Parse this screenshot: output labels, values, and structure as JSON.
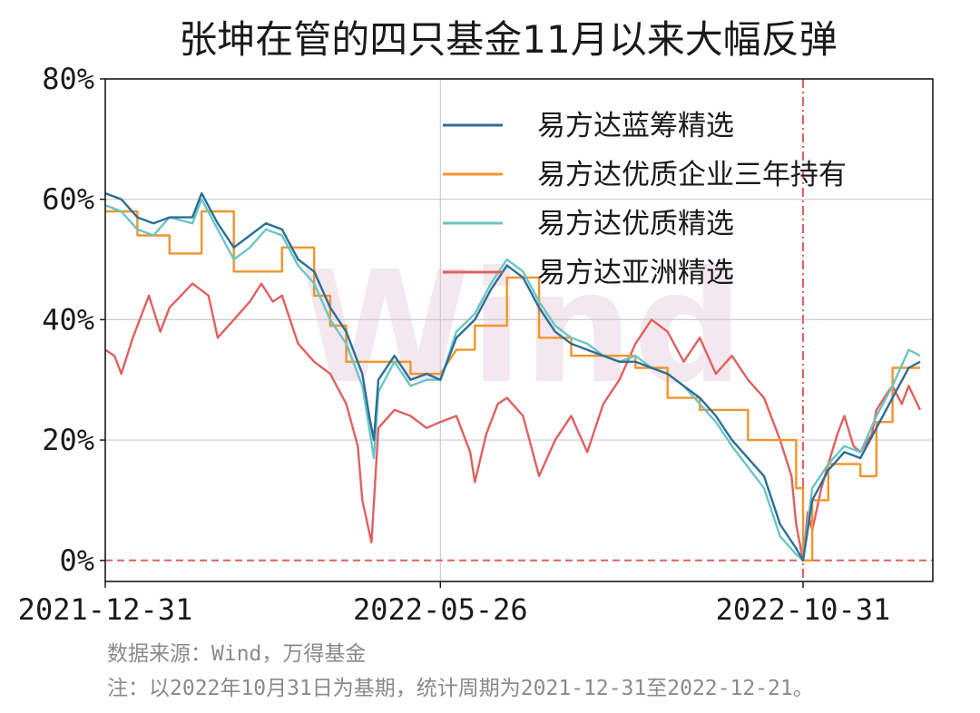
{
  "colors": {
    "series_1": "#2c6e98",
    "series_2": "#f0952a",
    "series_3": "#6cc5c4",
    "series_4": "#e06060",
    "reference": "#e06060",
    "grid": "#cccccc",
    "watermark": "#f3e8ef"
  },
  "watermark": "Wind",
  "notes": {
    "source": "数据来源：Wind，万得基金",
    "note": "注：以2022年10月31日为基期，统计周期为2021-12-31至2022-12-21。"
  },
  "chart_data": {
    "type": "line",
    "title": "张坤在管的四只基金11月以来大幅反弹",
    "xlabel": "",
    "ylabel": "",
    "x_ticks": [
      "2021-12-31",
      "2022-05-26",
      "2022-10-31"
    ],
    "x_range": [
      "2021-12-31",
      "2022-12-21"
    ],
    "y_ticks": [
      "0%",
      "20%",
      "40%",
      "60%",
      "80%"
    ],
    "ylim": [
      -3.5,
      80
    ],
    "grid": true,
    "legend_position": "top-right",
    "reference_lines": {
      "vertical_date": "2022-10-31",
      "horizontal_value": 0
    },
    "series": [
      {
        "name": "易方达蓝筹精选",
        "points": [
          [
            "2021-12-31",
            61
          ],
          [
            "2022-01-07",
            60
          ],
          [
            "2022-01-14",
            57
          ],
          [
            "2022-01-21",
            56
          ],
          [
            "2022-01-28",
            57
          ],
          [
            "2022-02-07",
            57
          ],
          [
            "2022-02-11",
            61
          ],
          [
            "2022-02-18",
            56
          ],
          [
            "2022-02-25",
            52
          ],
          [
            "2022-03-04",
            54
          ],
          [
            "2022-03-11",
            56
          ],
          [
            "2022-03-18",
            55
          ],
          [
            "2022-03-25",
            50
          ],
          [
            "2022-04-01",
            48
          ],
          [
            "2022-04-08",
            42
          ],
          [
            "2022-04-15",
            38
          ],
          [
            "2022-04-22",
            31
          ],
          [
            "2022-04-25",
            24
          ],
          [
            "2022-04-27",
            20
          ],
          [
            "2022-04-29",
            30
          ],
          [
            "2022-05-06",
            34
          ],
          [
            "2022-05-13",
            30
          ],
          [
            "2022-05-20",
            31
          ],
          [
            "2022-05-26",
            30
          ],
          [
            "2022-06-02",
            37
          ],
          [
            "2022-06-10",
            40
          ],
          [
            "2022-06-17",
            45
          ],
          [
            "2022-06-24",
            49
          ],
          [
            "2022-07-01",
            47
          ],
          [
            "2022-07-08",
            42
          ],
          [
            "2022-07-15",
            38
          ],
          [
            "2022-07-22",
            36
          ],
          [
            "2022-07-29",
            35
          ],
          [
            "2022-08-05",
            34
          ],
          [
            "2022-08-12",
            33
          ],
          [
            "2022-08-19",
            33
          ],
          [
            "2022-08-26",
            32
          ],
          [
            "2022-09-02",
            31
          ],
          [
            "2022-09-09",
            29
          ],
          [
            "2022-09-16",
            27
          ],
          [
            "2022-09-23",
            24
          ],
          [
            "2022-09-30",
            20
          ],
          [
            "2022-10-14",
            14
          ],
          [
            "2022-10-21",
            6
          ],
          [
            "2022-10-28",
            2
          ],
          [
            "2022-10-31",
            0
          ],
          [
            "2022-11-04",
            10
          ],
          [
            "2022-11-11",
            15
          ],
          [
            "2022-11-18",
            18
          ],
          [
            "2022-11-25",
            17
          ],
          [
            "2022-12-02",
            22
          ],
          [
            "2022-12-09",
            27
          ],
          [
            "2022-12-16",
            32
          ],
          [
            "2022-12-21",
            33
          ]
        ]
      },
      {
        "name": "易方达优质企业三年持有",
        "points": [
          [
            "2021-12-31",
            58
          ],
          [
            "2022-01-14",
            58
          ],
          [
            "2022-01-14",
            54
          ],
          [
            "2022-01-28",
            54
          ],
          [
            "2022-01-28",
            51
          ],
          [
            "2022-02-11",
            51
          ],
          [
            "2022-02-11",
            58
          ],
          [
            "2022-02-25",
            58
          ],
          [
            "2022-02-25",
            48
          ],
          [
            "2022-03-18",
            48
          ],
          [
            "2022-03-18",
            52
          ],
          [
            "2022-04-01",
            52
          ],
          [
            "2022-04-01",
            44
          ],
          [
            "2022-04-08",
            44
          ],
          [
            "2022-04-08",
            39
          ],
          [
            "2022-04-15",
            39
          ],
          [
            "2022-04-15",
            33
          ],
          [
            "2022-05-13",
            33
          ],
          [
            "2022-05-13",
            31
          ],
          [
            "2022-05-26",
            31
          ],
          [
            "2022-06-02",
            35
          ],
          [
            "2022-06-10",
            35
          ],
          [
            "2022-06-10",
            39
          ],
          [
            "2022-06-24",
            39
          ],
          [
            "2022-06-24",
            47
          ],
          [
            "2022-07-08",
            47
          ],
          [
            "2022-07-08",
            37
          ],
          [
            "2022-07-22",
            37
          ],
          [
            "2022-07-22",
            34
          ],
          [
            "2022-08-19",
            34
          ],
          [
            "2022-08-19",
            32
          ],
          [
            "2022-09-02",
            32
          ],
          [
            "2022-09-02",
            27
          ],
          [
            "2022-09-16",
            27
          ],
          [
            "2022-09-16",
            25
          ],
          [
            "2022-10-07",
            25
          ],
          [
            "2022-10-07",
            20
          ],
          [
            "2022-10-28",
            20
          ],
          [
            "2022-10-28",
            12
          ],
          [
            "2022-10-31",
            12
          ],
          [
            "2022-10-31",
            0
          ],
          [
            "2022-11-04",
            0
          ],
          [
            "2022-11-04",
            10
          ],
          [
            "2022-11-11",
            10
          ],
          [
            "2022-11-11",
            16
          ],
          [
            "2022-11-25",
            16
          ],
          [
            "2022-11-25",
            14
          ],
          [
            "2022-12-02",
            14
          ],
          [
            "2022-12-02",
            23
          ],
          [
            "2022-12-09",
            23
          ],
          [
            "2022-12-09",
            32
          ],
          [
            "2022-12-21",
            32
          ]
        ]
      },
      {
        "name": "易方达优质精选",
        "points": [
          [
            "2021-12-31",
            59
          ],
          [
            "2022-01-07",
            58
          ],
          [
            "2022-01-14",
            55
          ],
          [
            "2022-01-21",
            54
          ],
          [
            "2022-01-28",
            57
          ],
          [
            "2022-02-07",
            56
          ],
          [
            "2022-02-11",
            60
          ],
          [
            "2022-02-18",
            55
          ],
          [
            "2022-02-25",
            50
          ],
          [
            "2022-03-04",
            52
          ],
          [
            "2022-03-11",
            55
          ],
          [
            "2022-03-18",
            54
          ],
          [
            "2022-03-25",
            49
          ],
          [
            "2022-04-01",
            46
          ],
          [
            "2022-04-08",
            40
          ],
          [
            "2022-04-15",
            36
          ],
          [
            "2022-04-22",
            29
          ],
          [
            "2022-04-25",
            22
          ],
          [
            "2022-04-27",
            17
          ],
          [
            "2022-04-29",
            28
          ],
          [
            "2022-05-06",
            33
          ],
          [
            "2022-05-13",
            29
          ],
          [
            "2022-05-20",
            30
          ],
          [
            "2022-05-26",
            30
          ],
          [
            "2022-06-02",
            38
          ],
          [
            "2022-06-10",
            41
          ],
          [
            "2022-06-17",
            46
          ],
          [
            "2022-06-24",
            50
          ],
          [
            "2022-07-01",
            48
          ],
          [
            "2022-07-08",
            43
          ],
          [
            "2022-07-15",
            39
          ],
          [
            "2022-07-22",
            37
          ],
          [
            "2022-07-29",
            36
          ],
          [
            "2022-08-05",
            34
          ],
          [
            "2022-08-12",
            33
          ],
          [
            "2022-08-19",
            34
          ],
          [
            "2022-08-26",
            32
          ],
          [
            "2022-09-02",
            31
          ],
          [
            "2022-09-09",
            29
          ],
          [
            "2022-09-16",
            26
          ],
          [
            "2022-09-23",
            23
          ],
          [
            "2022-09-30",
            19
          ],
          [
            "2022-10-14",
            12
          ],
          [
            "2022-10-21",
            4
          ],
          [
            "2022-10-28",
            1
          ],
          [
            "2022-10-31",
            0
          ],
          [
            "2022-11-04",
            12
          ],
          [
            "2022-11-11",
            16
          ],
          [
            "2022-11-18",
            19
          ],
          [
            "2022-11-25",
            18
          ],
          [
            "2022-12-02",
            24
          ],
          [
            "2022-12-09",
            29
          ],
          [
            "2022-12-16",
            35
          ],
          [
            "2022-12-21",
            34
          ]
        ]
      },
      {
        "name": "易方达亚洲精选",
        "points": [
          [
            "2021-12-31",
            35
          ],
          [
            "2022-01-04",
            34
          ],
          [
            "2022-01-07",
            31
          ],
          [
            "2022-01-12",
            37
          ],
          [
            "2022-01-19",
            44
          ],
          [
            "2022-01-24",
            38
          ],
          [
            "2022-01-28",
            42
          ],
          [
            "2022-02-07",
            46
          ],
          [
            "2022-02-14",
            44
          ],
          [
            "2022-02-18",
            37
          ],
          [
            "2022-02-25",
            40
          ],
          [
            "2022-03-04",
            43
          ],
          [
            "2022-03-09",
            46
          ],
          [
            "2022-03-14",
            43
          ],
          [
            "2022-03-18",
            44
          ],
          [
            "2022-03-25",
            36
          ],
          [
            "2022-04-01",
            33
          ],
          [
            "2022-04-08",
            31
          ],
          [
            "2022-04-15",
            26
          ],
          [
            "2022-04-20",
            19
          ],
          [
            "2022-04-22",
            10
          ],
          [
            "2022-04-26",
            3
          ],
          [
            "2022-04-29",
            22
          ],
          [
            "2022-05-06",
            25
          ],
          [
            "2022-05-13",
            24
          ],
          [
            "2022-05-20",
            22
          ],
          [
            "2022-05-26",
            23
          ],
          [
            "2022-06-02",
            24
          ],
          [
            "2022-06-08",
            18
          ],
          [
            "2022-06-10",
            13
          ],
          [
            "2022-06-15",
            21
          ],
          [
            "2022-06-20",
            26
          ],
          [
            "2022-06-24",
            27
          ],
          [
            "2022-07-01",
            24
          ],
          [
            "2022-07-08",
            14
          ],
          [
            "2022-07-15",
            20
          ],
          [
            "2022-07-22",
            24
          ],
          [
            "2022-07-29",
            18
          ],
          [
            "2022-08-05",
            26
          ],
          [
            "2022-08-12",
            30
          ],
          [
            "2022-08-19",
            36
          ],
          [
            "2022-08-26",
            40
          ],
          [
            "2022-09-02",
            38
          ],
          [
            "2022-09-09",
            33
          ],
          [
            "2022-09-16",
            37
          ],
          [
            "2022-09-23",
            31
          ],
          [
            "2022-09-30",
            34
          ],
          [
            "2022-10-07",
            30
          ],
          [
            "2022-10-14",
            27
          ],
          [
            "2022-10-21",
            20
          ],
          [
            "2022-10-26",
            14
          ],
          [
            "2022-10-28",
            6
          ],
          [
            "2022-10-31",
            0
          ],
          [
            "2022-11-02",
            8
          ],
          [
            "2022-11-04",
            5
          ],
          [
            "2022-11-08",
            12
          ],
          [
            "2022-11-11",
            16
          ],
          [
            "2022-11-15",
            21
          ],
          [
            "2022-11-18",
            24
          ],
          [
            "2022-11-22",
            19
          ],
          [
            "2022-11-25",
            18
          ],
          [
            "2022-11-30",
            21
          ],
          [
            "2022-12-02",
            25
          ],
          [
            "2022-12-07",
            28
          ],
          [
            "2022-12-09",
            29
          ],
          [
            "2022-12-13",
            26
          ],
          [
            "2022-12-16",
            29
          ],
          [
            "2022-12-21",
            25
          ]
        ]
      }
    ]
  }
}
